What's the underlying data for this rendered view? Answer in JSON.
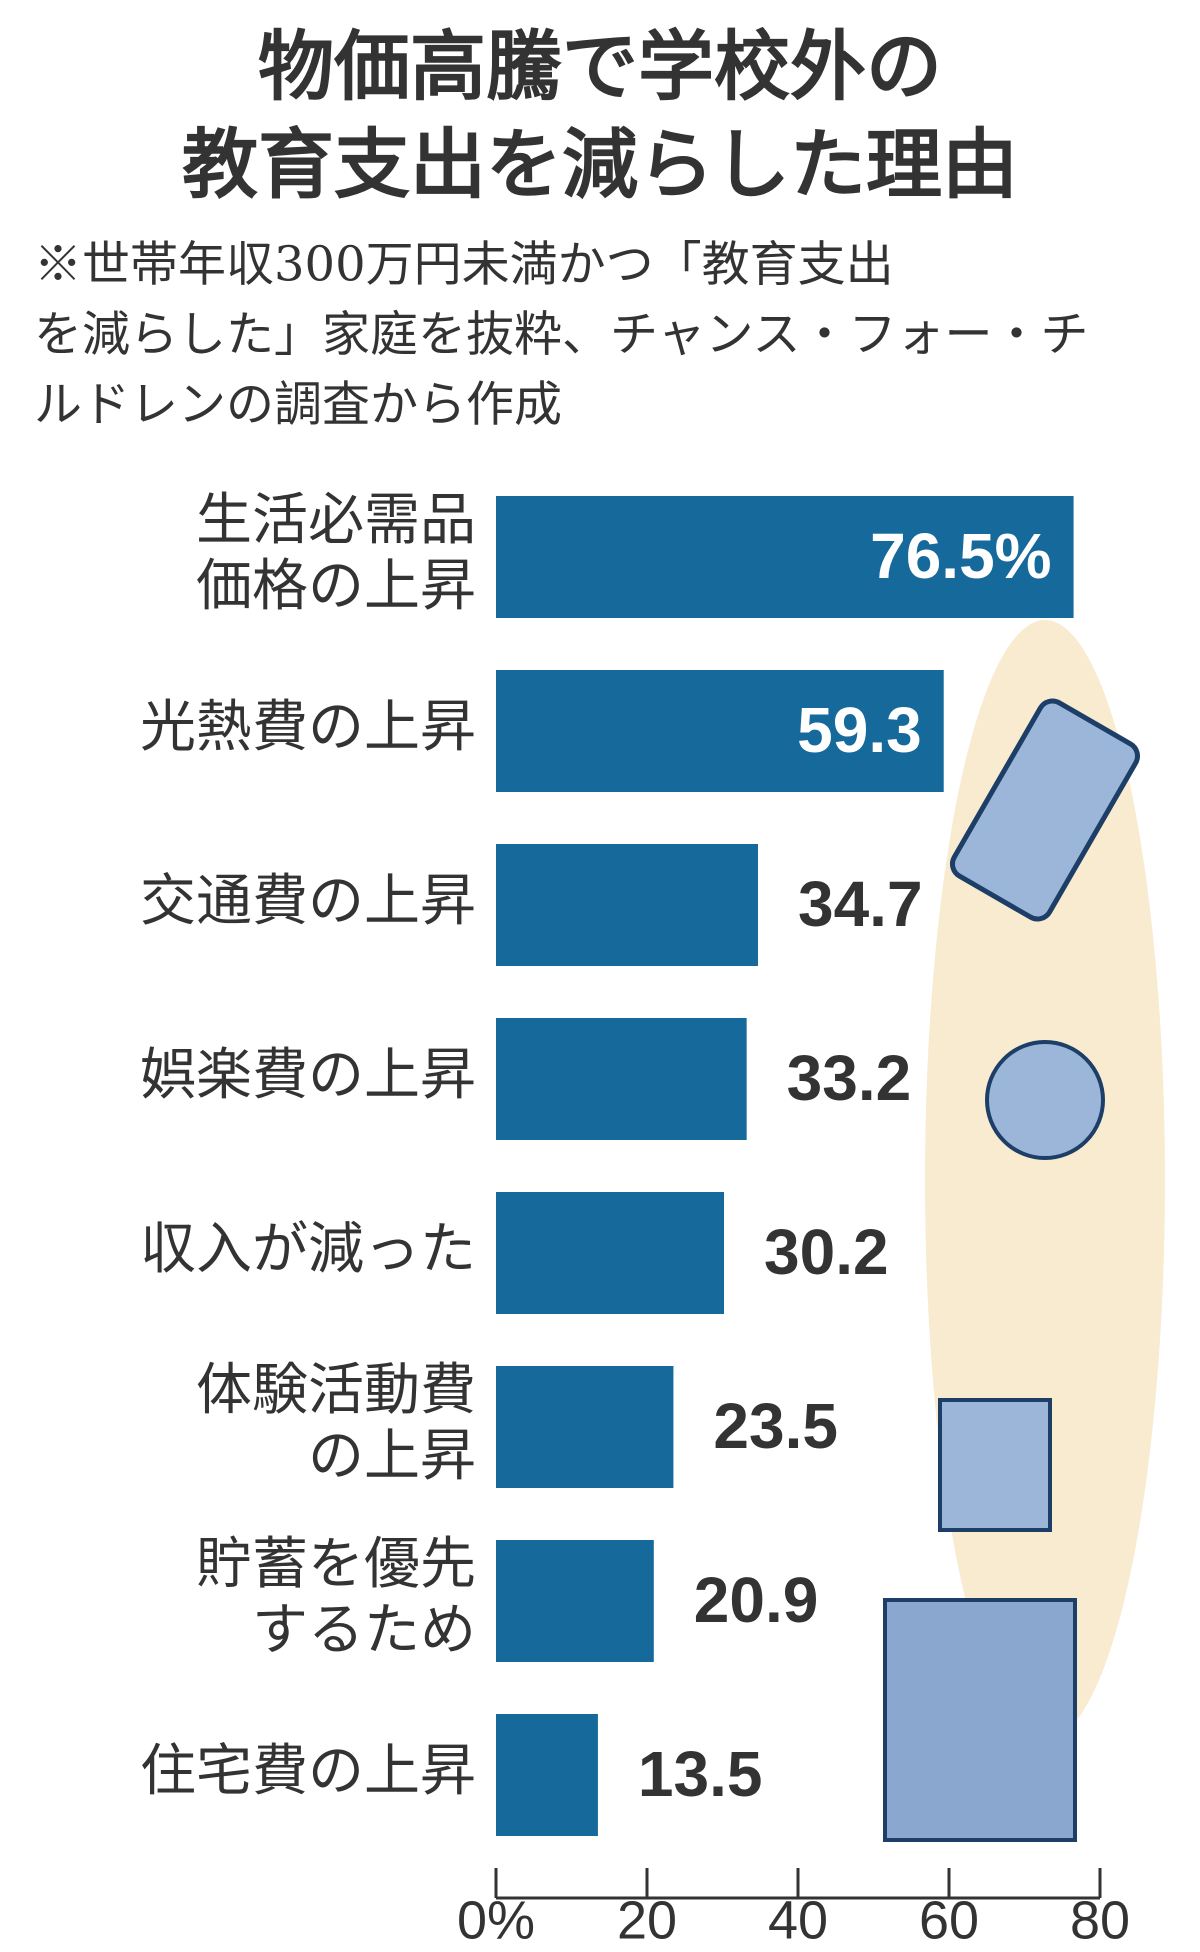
{
  "chart_data": {
    "type": "bar",
    "orientation": "horizontal",
    "title": [
      "物価高騰で学校外の",
      "教育支出を減らした理由"
    ],
    "subtitle": [
      "※世帯年収300万円未満かつ「教育支出",
      "を減らした」家庭を抜粋、チャンス・フォー・チ",
      "ルドレンの調査から作成"
    ],
    "categories": [
      [
        "生活必需品",
        "価格の上昇"
      ],
      [
        "光熱費の上昇"
      ],
      [
        "交通費の上昇"
      ],
      [
        "娯楽費の上昇"
      ],
      [
        "収入が減った"
      ],
      [
        "体験活動費",
        "の上昇"
      ],
      [
        "貯蓄を優先",
        "するため"
      ],
      [
        "住宅費の上昇"
      ]
    ],
    "values": [
      76.5,
      59.3,
      34.7,
      33.2,
      30.2,
      23.5,
      20.9,
      13.5
    ],
    "value_labels": [
      "76.5%",
      "59.3",
      "34.7",
      "33.2",
      "30.2",
      "23.5",
      "20.9",
      "13.5"
    ],
    "color": "#16699b",
    "xlim": [
      0,
      80
    ],
    "xticks": [
      {
        "value": 0,
        "label": "0%"
      },
      20,
      40,
      60,
      80
    ]
  }
}
